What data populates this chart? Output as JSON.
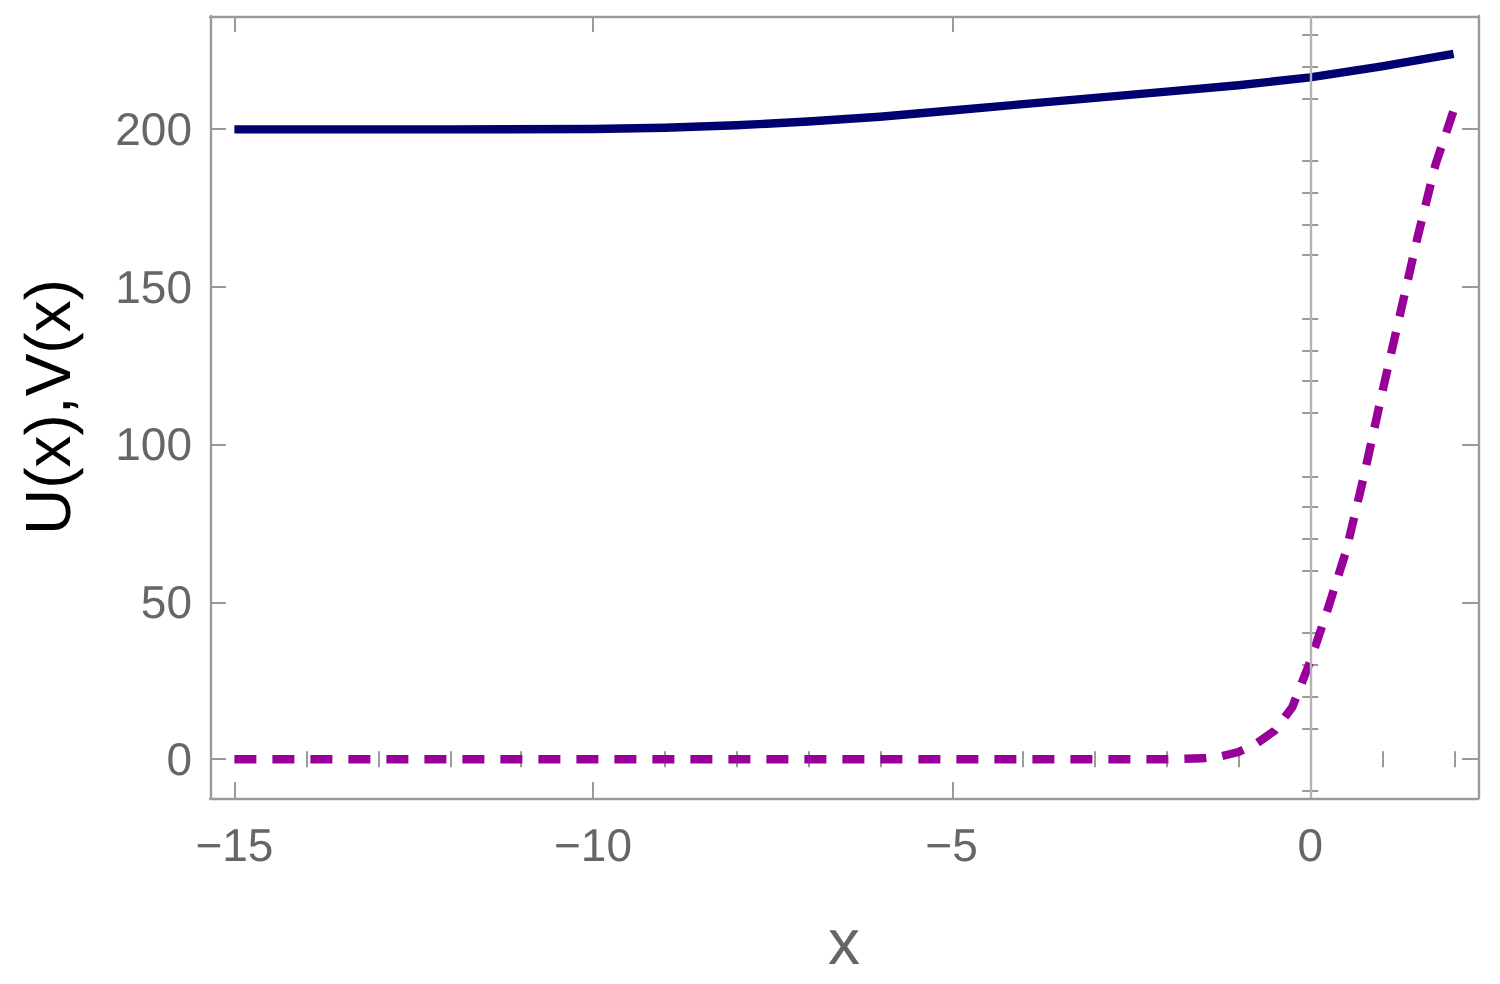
{
  "chart_data": {
    "type": "line",
    "xlabel": "x",
    "ylabel": "U(x),V(x)",
    "xlim": [
      -15.34,
      2.34
    ],
    "ylim": [
      -12.3,
      236
    ],
    "xticks": [
      {
        "value": -15,
        "label": "−15"
      },
      {
        "value": -14,
        "label": null
      },
      {
        "value": -13,
        "label": null
      },
      {
        "value": -12,
        "label": null
      },
      {
        "value": -11,
        "label": null
      },
      {
        "value": -10,
        "label": "−10"
      },
      {
        "value": -9,
        "label": null
      },
      {
        "value": -8,
        "label": null
      },
      {
        "value": -7,
        "label": null
      },
      {
        "value": -6,
        "label": null
      },
      {
        "value": -5,
        "label": "−5"
      },
      {
        "value": -4,
        "label": null
      },
      {
        "value": -3,
        "label": null
      },
      {
        "value": -2,
        "label": null
      },
      {
        "value": -1,
        "label": null
      },
      0,
      {
        "value": 1,
        "label": null
      },
      {
        "value": 2,
        "label": null
      }
    ],
    "yticks": [
      {
        "value": -10,
        "label": null
      },
      0,
      {
        "value": 10,
        "label": null
      },
      {
        "value": 20,
        "label": null
      },
      {
        "value": 30,
        "label": null
      },
      {
        "value": 40,
        "label": null
      },
      50,
      {
        "value": 60,
        "label": null
      },
      {
        "value": 70,
        "label": null
      },
      {
        "value": 80,
        "label": null
      },
      {
        "value": 90,
        "label": null
      },
      100,
      {
        "value": 110,
        "label": null
      },
      {
        "value": 120,
        "label": null
      },
      {
        "value": 130,
        "label": null
      },
      {
        "value": 140,
        "label": null
      },
      150,
      {
        "value": 160,
        "label": null
      },
      {
        "value": 170,
        "label": null
      },
      {
        "value": 180,
        "label": null
      },
      {
        "value": 190,
        "label": null
      },
      200,
      {
        "value": 210,
        "label": null
      },
      {
        "value": 220,
        "label": null
      },
      {
        "value": 230,
        "label": null
      }
    ],
    "grid": false,
    "marker": "none",
    "ref_lines": [
      {
        "axis": "x",
        "value": 0,
        "color": "#b3b3b3"
      }
    ],
    "series": [
      {
        "color": "#000070",
        "line_style": "solid",
        "x": [
          -15,
          -12,
          -10,
          -9,
          -8,
          -7,
          -6,
          -5,
          -4,
          -3,
          -2,
          -1,
          0,
          1,
          2
        ],
        "values": [
          200,
          200,
          200.1,
          200.5,
          201.3,
          202.5,
          204,
          206,
          208,
          210,
          212,
          214,
          216.5,
          220,
          224
        ]
      },
      {
        "color": "#990099",
        "line_style": "dashed",
        "x": [
          -15,
          -10,
          -5,
          -2,
          -1.5,
          -1.25,
          -1,
          -0.75,
          -0.5,
          -0.25,
          0,
          0.25,
          0.5,
          0.75,
          1,
          1.25,
          1.5,
          1.75,
          2
        ],
        "values": [
          0,
          0,
          0,
          0,
          0.3,
          0.9,
          2.3,
          5,
          9,
          16.5,
          31,
          48,
          66,
          90,
          116,
          141,
          166,
          189,
          206
        ]
      }
    ]
  }
}
